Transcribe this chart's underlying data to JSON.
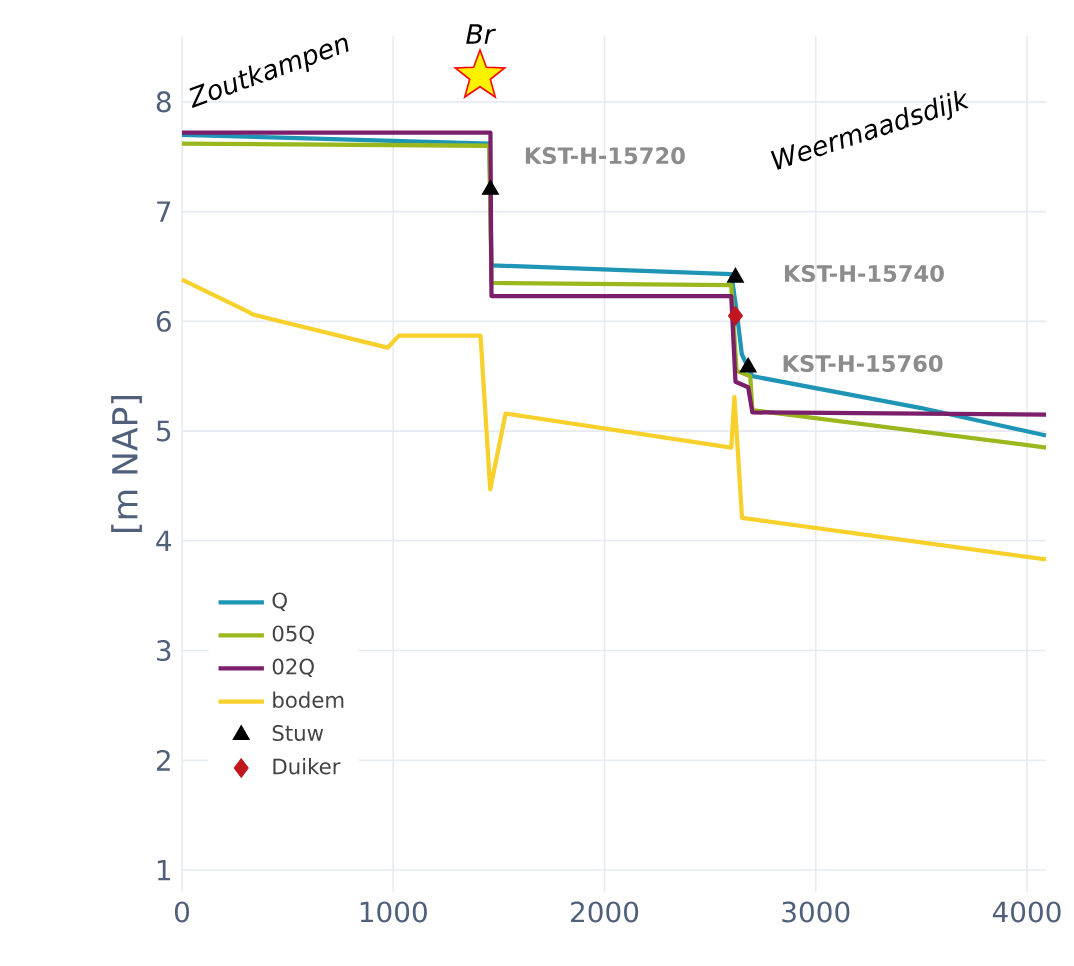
{
  "chart_data": {
    "type": "line",
    "ylabel": "[m NAP]",
    "xlim": [
      0,
      4090
    ],
    "ylim": [
      0.8,
      8.6
    ],
    "xticks": [
      0,
      1000,
      2000,
      3000,
      4000
    ],
    "yticks": [
      1,
      2,
      3,
      4,
      5,
      6,
      7,
      8
    ],
    "grid": true,
    "legend": "bottom left",
    "marker": "none",
    "line_style": "solid",
    "series": [
      {
        "name": "Q",
        "color": "#1f95b5",
        "x": [
          0,
          1455,
          1465,
          2600,
          2625,
          2650,
          2700,
          3500,
          4090
        ],
        "values": [
          7.7,
          7.62,
          6.51,
          6.43,
          6.1,
          5.7,
          5.5,
          5.21,
          4.96
        ]
      },
      {
        "name": "05Q",
        "color": "#9ab81e",
        "x": [
          0,
          1455,
          1465,
          2600,
          2625,
          2690,
          2700,
          4090
        ],
        "values": [
          7.62,
          7.6,
          6.35,
          6.33,
          5.55,
          5.5,
          5.19,
          4.85
        ]
      },
      {
        "name": "02Q",
        "color": "#7b1f6b",
        "x": [
          0,
          1460,
          1465,
          2600,
          2620,
          2680,
          2700,
          4090
        ],
        "values": [
          7.72,
          7.72,
          6.23,
          6.23,
          5.45,
          5.4,
          5.17,
          5.15
        ]
      },
      {
        "name": "bodem",
        "color": "#f7d02c",
        "x": [
          0,
          300,
          340,
          973,
          1027,
          1413,
          1459,
          1532,
          2600,
          2615,
          2651,
          4090
        ],
        "values": [
          6.38,
          6.1,
          6.06,
          5.76,
          5.87,
          5.87,
          4.47,
          5.16,
          4.85,
          5.31,
          4.21,
          3.83
        ]
      },
      {
        "name": "Stuw",
        "type": "scatter",
        "marker": "triangle",
        "color": "#000000",
        "x": [
          1460,
          2620,
          2680
        ],
        "values": [
          7.2,
          6.4,
          5.58
        ]
      },
      {
        "name": "Duiker",
        "type": "scatter",
        "marker": "diamond",
        "color": "#c0171f",
        "x": [
          2620
        ],
        "values": [
          6.05
        ]
      }
    ],
    "annotations": [
      "Zoutkampen",
      "Br",
      "Weermaadsdijk",
      {
        "text": "KST-H-15720",
        "x": 1460,
        "y": 7.2
      },
      {
        "text": "KST-H-15740",
        "x": 2620,
        "y": 6.4
      },
      {
        "text": "KST-H-15760",
        "x": 2680,
        "y": 5.58
      }
    ]
  }
}
